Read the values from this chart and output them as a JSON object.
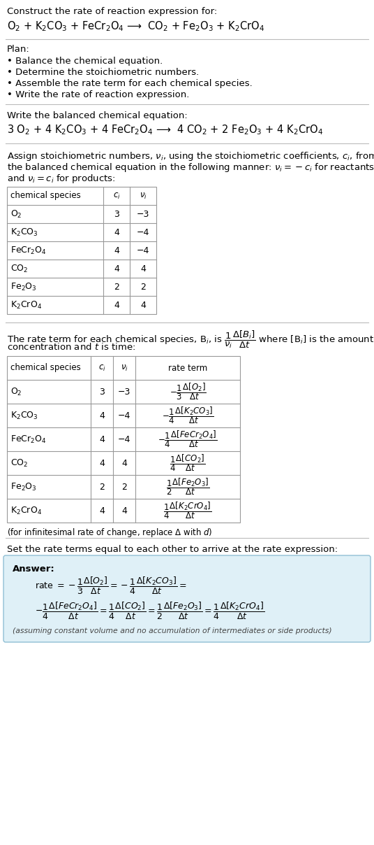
{
  "bg_color": "#ffffff",
  "text_color": "#000000",
  "title_line1": "Construct the rate of reaction expression for:",
  "reaction_unbalanced": "O$_2$ + K$_2$CO$_3$ + FeCr$_2$O$_4$ ⟶  CO$_2$ + Fe$_2$O$_3$ + K$_2$CrO$_4$",
  "plan_header": "Plan:",
  "plan_items": [
    "• Balance the chemical equation.",
    "• Determine the stoichiometric numbers.",
    "• Assemble the rate term for each chemical species.",
    "• Write the rate of reaction expression."
  ],
  "balanced_header": "Write the balanced chemical equation:",
  "reaction_balanced": "3 O$_2$ + 4 K$_2$CO$_3$ + 4 FeCr$_2$O$_4$ ⟶  4 CO$_2$ + 2 Fe$_2$O$_3$ + 4 K$_2$CrO$_4$",
  "stoich_intro1": "Assign stoichiometric numbers, $\\nu_i$, using the stoichiometric coefficients, $c_i$, from",
  "stoich_intro2": "the balanced chemical equation in the following manner: $\\nu_i = -c_i$ for reactants",
  "stoich_intro3": "and $\\nu_i = c_i$ for products:",
  "table1_headers": [
    "chemical species",
    "$c_i$",
    "$\\nu_i$"
  ],
  "table1_data": [
    [
      "O$_2$",
      "3",
      "−3"
    ],
    [
      "K$_2$CO$_3$",
      "4",
      "−4"
    ],
    [
      "FeCr$_2$O$_4$",
      "4",
      "−4"
    ],
    [
      "CO$_2$",
      "4",
      "4"
    ],
    [
      "Fe$_2$O$_3$",
      "2",
      "2"
    ],
    [
      "K$_2$CrO$_4$",
      "4",
      "4"
    ]
  ],
  "rate_intro1": "The rate term for each chemical species, B$_i$, is $\\dfrac{1}{\\nu_i}\\dfrac{\\Delta[B_i]}{\\Delta t}$ where [B$_i$] is the amount",
  "rate_intro2": "concentration and $t$ is time:",
  "table2_headers": [
    "chemical species",
    "$c_i$",
    "$\\nu_i$",
    "rate term"
  ],
  "table2_data": [
    [
      "O$_2$",
      "3",
      "−3",
      "$-\\dfrac{1}{3}\\dfrac{\\Delta[O_2]}{\\Delta t}$"
    ],
    [
      "K$_2$CO$_3$",
      "4",
      "−4",
      "$-\\dfrac{1}{4}\\dfrac{\\Delta[K_2CO_3]}{\\Delta t}$"
    ],
    [
      "FeCr$_2$O$_4$",
      "4",
      "−4",
      "$-\\dfrac{1}{4}\\dfrac{\\Delta[FeCr_2O_4]}{\\Delta t}$"
    ],
    [
      "CO$_2$",
      "4",
      "4",
      "$\\dfrac{1}{4}\\dfrac{\\Delta[CO_2]}{\\Delta t}$"
    ],
    [
      "Fe$_2$O$_3$",
      "2",
      "2",
      "$\\dfrac{1}{2}\\dfrac{\\Delta[Fe_2O_3]}{\\Delta t}$"
    ],
    [
      "K$_2$CrO$_4$",
      "4",
      "4",
      "$\\dfrac{1}{4}\\dfrac{\\Delta[K_2CrO_4]}{\\Delta t}$"
    ]
  ],
  "infinitesimal_note": "(for infinitesimal rate of change, replace Δ with $d$)",
  "set_equal_text": "Set the rate terms equal to each other to arrive at the rate expression:",
  "answer_box_color": "#dff0f7",
  "answer_box_border": "#90bfd4",
  "answer_label": "Answer:",
  "answer_line1a": "rate $= -\\dfrac{1}{3}\\dfrac{\\Delta[O_2]}{\\Delta t} = -\\dfrac{1}{4}\\dfrac{\\Delta[K_2CO_3]}{\\Delta t} =$",
  "answer_line2a": "$-\\dfrac{1}{4}\\dfrac{\\Delta[FeCr_2O_4]}{\\Delta t} = \\dfrac{1}{4}\\dfrac{\\Delta[CO_2]}{\\Delta t} = \\dfrac{1}{2}\\dfrac{\\Delta[Fe_2O_3]}{\\Delta t} = \\dfrac{1}{4}\\dfrac{\\Delta[K_2CrO_4]}{\\Delta t}$",
  "answer_footnote": "(assuming constant volume and no accumulation of intermediates or side products)",
  "table_border_color": "#999999"
}
